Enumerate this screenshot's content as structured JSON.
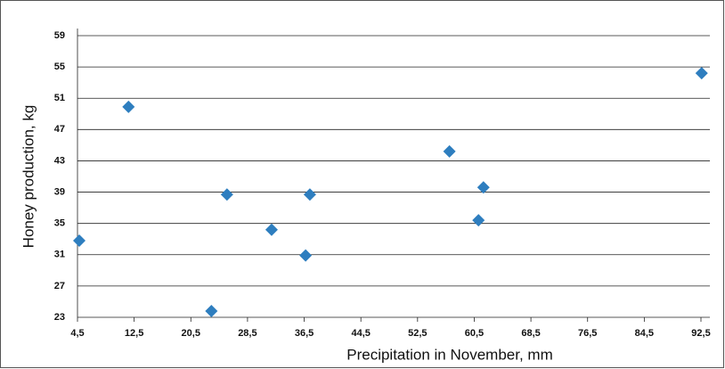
{
  "chart_data": {
    "type": "scatter",
    "x_label": "Precipitation in November, mm",
    "y_label": "Honey production, kg",
    "x": [
      4.75,
      11.7,
      23.4,
      25.6,
      31.9,
      36.7,
      37.3,
      57.0,
      61.1,
      61.8,
      92.6
    ],
    "values": [
      32.8,
      49.9,
      23.8,
      38.7,
      34.2,
      30.9,
      38.7,
      44.2,
      35.4,
      39.6,
      54.2
    ],
    "color": "#2e7ebf",
    "xlim": [
      4.5,
      92.5
    ],
    "xticks": [
      {
        "value": 4.5,
        "label": "4,5"
      },
      {
        "value": 12.5,
        "label": "12,5"
      },
      {
        "value": 20.5,
        "label": "20,5"
      },
      {
        "value": 28.5,
        "label": "28,5"
      },
      {
        "value": 36.5,
        "label": "36,5"
      },
      {
        "value": 44.5,
        "label": "44,5"
      },
      {
        "value": 52.5,
        "label": "52,5"
      },
      {
        "value": 60.5,
        "label": "60,5"
      },
      {
        "value": 68.5,
        "label": "68,5"
      },
      {
        "value": 76.5,
        "label": "76,5"
      },
      {
        "value": 84.5,
        "label": "84,5"
      },
      {
        "value": 92.5,
        "label": "92,5"
      }
    ],
    "ylim": [
      23,
      59
    ],
    "yticks": [
      23,
      27,
      31,
      35,
      39,
      43,
      47,
      51,
      55,
      59
    ],
    "grid": true
  }
}
